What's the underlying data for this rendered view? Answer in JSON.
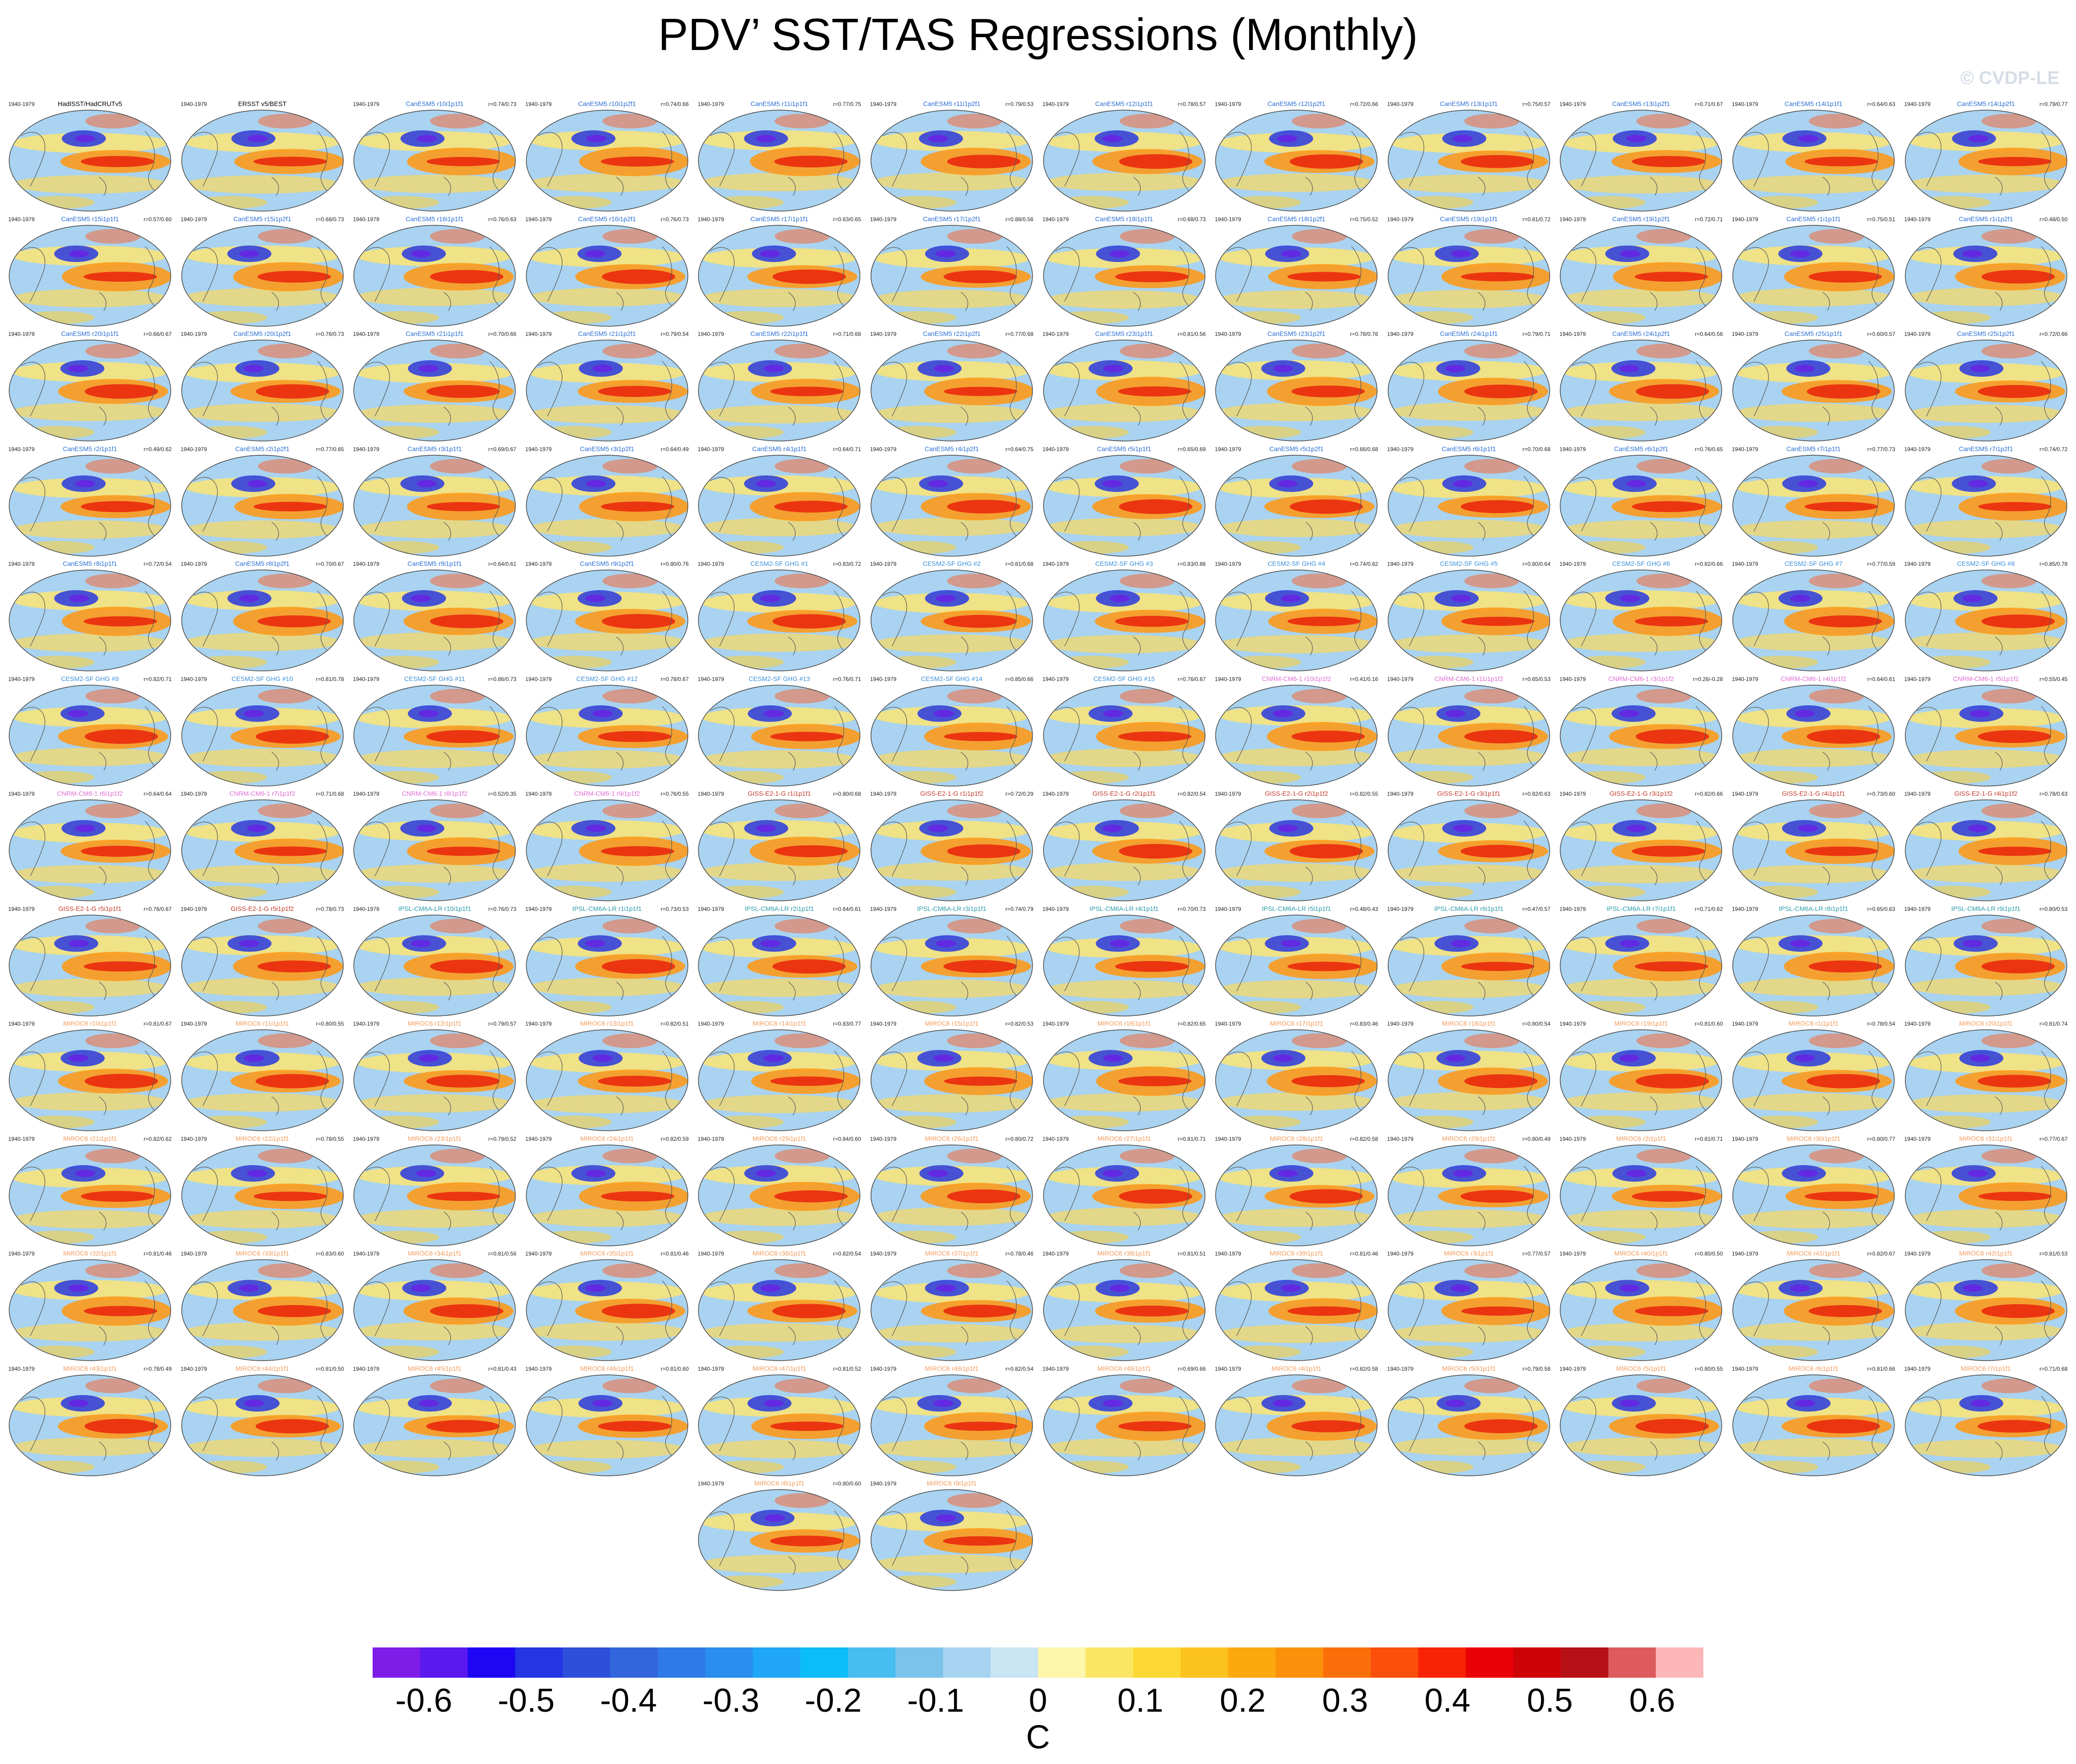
{
  "title": "PDV’ SST/TAS Regressions (Monthly)",
  "watermark": "© CVDP-LE",
  "chart_data": {
    "type": "heatmap",
    "title": "PDV’ SST/TAS Regressions (Monthly)",
    "period": "1940-1979",
    "panels": [
      {
        "name": "HadISST/HadCRUTv5",
        "group": "obs",
        "r": ""
      },
      {
        "name": "ERSST v5/BEST",
        "group": "obs",
        "r": ""
      },
      {
        "name": "CanESM5 r10i1p1f1",
        "group": "CanESM5",
        "r": "r=0.74/0.73"
      },
      {
        "name": "CanESM5 r10i1p2f1",
        "group": "CanESM5",
        "r": "r=0.74/0.66"
      },
      {
        "name": "CanESM5 r11i1p1f1",
        "group": "CanESM5",
        "r": "r=0.77/0.75"
      },
      {
        "name": "CanESM5 r11i1p2f1",
        "group": "CanESM5",
        "r": "r=0.79/0.53"
      },
      {
        "name": "CanESM5 r12i1p1f1",
        "group": "CanESM5",
        "r": "r=0.78/0.57"
      },
      {
        "name": "CanESM5 r12i1p2f1",
        "group": "CanESM5",
        "r": "r=0.72/0.66"
      },
      {
        "name": "CanESM5 r13i1p1f1",
        "group": "CanESM5",
        "r": "r=0.75/0.57"
      },
      {
        "name": "CanESM5 r13i1p2f1",
        "group": "CanESM5",
        "r": "r=0.71/0.67"
      },
      {
        "name": "CanESM5 r14i1p1f1",
        "group": "CanESM5",
        "r": "r=0.64/0.63"
      },
      {
        "name": "CanESM5 r14i1p2f1",
        "group": "CanESM5",
        "r": "r=0.79/0.77"
      },
      {
        "name": "CanESM5 r15i1p1f1",
        "group": "CanESM5",
        "r": "r=0.57/0.60"
      },
      {
        "name": "CanESM5 r15i1p2f1",
        "group": "CanESM5",
        "r": "r=0.68/0.73"
      },
      {
        "name": "CanESM5 r16i1p1f1",
        "group": "CanESM5",
        "r": "r=0.76/0.63"
      },
      {
        "name": "CanESM5 r16i1p2f1",
        "group": "CanESM5",
        "r": "r=0.76/0.73"
      },
      {
        "name": "CanESM5 r17i1p1f1",
        "group": "CanESM5",
        "r": "r=0.63/0.65"
      },
      {
        "name": "CanESM5 r17i1p2f1",
        "group": "CanESM5",
        "r": "r=0.88/0.56"
      },
      {
        "name": "CanESM5 r18i1p1f1",
        "group": "CanESM5",
        "r": "r=0.68/0.73"
      },
      {
        "name": "CanESM5 r18i1p2f1",
        "group": "CanESM5",
        "r": "r=0.75/0.52"
      },
      {
        "name": "CanESM5 r19i1p1f1",
        "group": "CanESM5",
        "r": "r=0.81/0.72"
      },
      {
        "name": "CanESM5 r19i1p2f1",
        "group": "CanESM5",
        "r": "r=0.72/0.71"
      },
      {
        "name": "CanESM5 r1i1p1f1",
        "group": "CanESM5",
        "r": "r=0.75/0.51"
      },
      {
        "name": "CanESM5 r1i1p2f1",
        "group": "CanESM5",
        "r": "r=0.48/0.50"
      },
      {
        "name": "CanESM5 r20i1p1f1",
        "group": "CanESM5",
        "r": "r=0.66/0.67"
      },
      {
        "name": "CanESM5 r20i1p2f1",
        "group": "CanESM5",
        "r": "r=0.76/0.73"
      },
      {
        "name": "CanESM5 r21i1p1f1",
        "group": "CanESM5",
        "r": "r=0.70/0.66"
      },
      {
        "name": "CanESM5 r21i1p2f1",
        "group": "CanESM5",
        "r": "r=0.79/0.54"
      },
      {
        "name": "CanESM5 r22i1p1f1",
        "group": "CanESM5",
        "r": "r=0.71/0.68"
      },
      {
        "name": "CanESM5 r22i1p2f1",
        "group": "CanESM5",
        "r": "r=0.77/0.68"
      },
      {
        "name": "CanESM5 r23i1p1f1",
        "group": "CanESM5",
        "r": "r=0.81/0.56"
      },
      {
        "name": "CanESM5 r23i1p2f1",
        "group": "CanESM5",
        "r": "r=0.78/0.76"
      },
      {
        "name": "CanESM5 r24i1p1f1",
        "group": "CanESM5",
        "r": "r=0.79/0.71"
      },
      {
        "name": "CanESM5 r24i1p2f1",
        "group": "CanESM5",
        "r": "r=0.64/0.56"
      },
      {
        "name": "CanESM5 r25i1p1f1",
        "group": "CanESM5",
        "r": "r=0.60/0.57"
      },
      {
        "name": "CanESM5 r25i1p2f1",
        "group": "CanESM5",
        "r": "r=0.72/0.66"
      },
      {
        "name": "CanESM5 r2i1p1f1",
        "group": "CanESM5",
        "r": "r=0.49/0.62"
      },
      {
        "name": "CanESM5 r2i1p2f1",
        "group": "CanESM5",
        "r": "r=0.77/0.65"
      },
      {
        "name": "CanESM5 r3i1p1f1",
        "group": "CanESM5",
        "r": "r=0.69/0.67"
      },
      {
        "name": "CanESM5 r3i1p2f1",
        "group": "CanESM5",
        "r": "r=0.64/0.49"
      },
      {
        "name": "CanESM5 r4i1p1f1",
        "group": "CanESM5",
        "r": "r=0.64/0.71"
      },
      {
        "name": "CanESM5 r4i1p2f1",
        "group": "CanESM5",
        "r": "r=0.64/0.75"
      },
      {
        "name": "CanESM5 r5i1p1f1",
        "group": "CanESM5",
        "r": "r=0.65/0.69"
      },
      {
        "name": "CanESM5 r5i1p2f1",
        "group": "CanESM5",
        "r": "r=0.66/0.68"
      },
      {
        "name": "CanESM5 r6i1p1f1",
        "group": "CanESM5",
        "r": "r=0.70/0.68"
      },
      {
        "name": "CanESM5 r6i1p2f1",
        "group": "CanESM5",
        "r": "r=0.76/0.65"
      },
      {
        "name": "CanESM5 r7i1p1f1",
        "group": "CanESM5",
        "r": "r=0.77/0.73"
      },
      {
        "name": "CanESM5 r7i1p2f1",
        "group": "CanESM5",
        "r": "r=0.74/0.72"
      },
      {
        "name": "CanESM5 r8i1p1f1",
        "group": "CanESM5",
        "r": "r=0.72/0.54"
      },
      {
        "name": "CanESM5 r8i1p2f1",
        "group": "CanESM5",
        "r": "r=0.70/0.67"
      },
      {
        "name": "CanESM5 r9i1p1f1",
        "group": "CanESM5",
        "r": "r=0.64/0.61"
      },
      {
        "name": "CanESM5 r9i1p2f1",
        "group": "CanESM5",
        "r": "r=0.80/0.76"
      },
      {
        "name": "CESM2-SF GHG #1",
        "group": "CESM2",
        "r": "r=0.83/0.72"
      },
      {
        "name": "CESM2-SF GHG #2",
        "group": "CESM2",
        "r": "r=0.81/0.68"
      },
      {
        "name": "CESM2-SF GHG #3",
        "group": "CESM2",
        "r": "r=0.83/0.86"
      },
      {
        "name": "CESM2-SF GHG #4",
        "group": "CESM2",
        "r": "r=0.74/0.82"
      },
      {
        "name": "CESM2-SF GHG #5",
        "group": "CESM2",
        "r": "r=0.80/0.64"
      },
      {
        "name": "CESM2-SF GHG #6",
        "group": "CESM2",
        "r": "r=0.82/0.66"
      },
      {
        "name": "CESM2-SF GHG #7",
        "group": "CESM2",
        "r": "r=0.77/0.59"
      },
      {
        "name": "CESM2-SF GHG #8",
        "group": "CESM2",
        "r": "r=0.85/0.78"
      },
      {
        "name": "CESM2-SF GHG #9",
        "group": "CESM2",
        "r": "r=0.82/0.71"
      },
      {
        "name": "CESM2-SF GHG #10",
        "group": "CESM2",
        "r": "r=0.81/0.78"
      },
      {
        "name": "CESM2-SF GHG #11",
        "group": "CESM2",
        "r": "r=0.86/0.73"
      },
      {
        "name": "CESM2-SF GHG #12",
        "group": "CESM2",
        "r": "r=0.78/0.67"
      },
      {
        "name": "CESM2-SF GHG #13",
        "group": "CESM2",
        "r": "r=0.76/0.71"
      },
      {
        "name": "CESM2-SF GHG #14",
        "group": "CESM2",
        "r": "r=0.85/0.66"
      },
      {
        "name": "CESM2-SF GHG #15",
        "group": "CESM2",
        "r": "r=0.76/0.67"
      },
      {
        "name": "CNRM-CM6-1 r10i1p1f2",
        "group": "CNRM",
        "r": "r=0.41/0.16"
      },
      {
        "name": "CNRM-CM6-1 r11i1p1f2",
        "group": "CNRM",
        "r": "r=0.65/0.53"
      },
      {
        "name": "CNRM-CM6-1 r3i1p1f2",
        "group": "CNRM",
        "r": "r=0.26/-0.28"
      },
      {
        "name": "CNRM-CM6-1 r4i1p1f2",
        "group": "CNRM",
        "r": "r=0.64/0.61"
      },
      {
        "name": "CNRM-CM6-1 r5i1p1f2",
        "group": "CNRM",
        "r": "r=0.55/0.45"
      },
      {
        "name": "CNRM-CM6-1 r6i1p1f2",
        "group": "CNRM",
        "r": "r=0.64/0.64"
      },
      {
        "name": "CNRM-CM6-1 r7i1p1f2",
        "group": "CNRM",
        "r": "r=0.71/0.68"
      },
      {
        "name": "CNRM-CM6-1 r8i1p1f2",
        "group": "CNRM",
        "r": "r=0.52/0.35"
      },
      {
        "name": "CNRM-CM6-1 r9i1p1f2",
        "group": "CNRM",
        "r": "r=0.76/0.55"
      },
      {
        "name": "GISS-E2-1-G r1i1p1f1",
        "group": "GISS",
        "r": "r=0.80/0.68"
      },
      {
        "name": "GISS-E2-1-G r1i1p1f2",
        "group": "GISS",
        "r": "r=0.72/0.29"
      },
      {
        "name": "GISS-E2-1-G r2i1p1f1",
        "group": "GISS",
        "r": "r=0.82/0.54"
      },
      {
        "name": "GISS-E2-1-G r2i1p1f2",
        "group": "GISS",
        "r": "r=0.82/0.55"
      },
      {
        "name": "GISS-E2-1-G r3i1p1f1",
        "group": "GISS",
        "r": "r=0.82/0.63"
      },
      {
        "name": "GISS-E2-1-G r3i1p1f2",
        "group": "GISS",
        "r": "r=0.82/0.66"
      },
      {
        "name": "GISS-E2-1-G r4i1p1f1",
        "group": "GISS",
        "r": "r=0.73/0.60"
      },
      {
        "name": "GISS-E2-1-G r4i1p1f2",
        "group": "GISS",
        "r": "r=0.78/0.63"
      },
      {
        "name": "GISS-E2-1-G r5i1p1f1",
        "group": "GISS",
        "r": "r=0.76/0.67"
      },
      {
        "name": "GISS-E2-1-G r5i1p1f2",
        "group": "GISS",
        "r": "r=0.78/0.73"
      },
      {
        "name": "IPSL-CM6A-LR r10i1p1f1",
        "group": "IPSL",
        "r": "r=0.76/0.73"
      },
      {
        "name": "IPSL-CM6A-LR r1i1p1f1",
        "group": "IPSL",
        "r": "r=0.73/0.53"
      },
      {
        "name": "IPSL-CM6A-LR r2i1p1f1",
        "group": "IPSL",
        "r": "r=0.64/0.61"
      },
      {
        "name": "IPSL-CM6A-LR r3i1p1f1",
        "group": "IPSL",
        "r": "r=0.74/0.79"
      },
      {
        "name": "IPSL-CM6A-LR r4i1p1f1",
        "group": "IPSL",
        "r": "r=0.70/0.73"
      },
      {
        "name": "IPSL-CM6A-LR r5i1p1f1",
        "group": "IPSL",
        "r": "r=0.48/0.43"
      },
      {
        "name": "IPSL-CM6A-LR r6i1p1f1",
        "group": "IPSL",
        "r": "r=0.47/0.57"
      },
      {
        "name": "IPSL-CM6A-LR r7i1p1f1",
        "group": "IPSL",
        "r": "r=0.71/0.62"
      },
      {
        "name": "IPSL-CM6A-LR r8i1p1f1",
        "group": "IPSL",
        "r": "r=0.65/0.63"
      },
      {
        "name": "IPSL-CM6A-LR r9i1p1f1",
        "group": "IPSL",
        "r": "r=0.80/0.53"
      },
      {
        "name": "MIROC6 r10i1p1f1",
        "group": "MIROC6",
        "r": "r=0.81/0.67"
      },
      {
        "name": "MIROC6 r11i1p1f1",
        "group": "MIROC6",
        "r": "r=0.80/0.55"
      },
      {
        "name": "MIROC6 r12i1p1f1",
        "group": "MIROC6",
        "r": "r=0.79/0.57"
      },
      {
        "name": "MIROC6 r13i1p1f1",
        "group": "MIROC6",
        "r": "r=0.82/0.51"
      },
      {
        "name": "MIROC6 r14i1p1f1",
        "group": "MIROC6",
        "r": "r=0.83/0.77"
      },
      {
        "name": "MIROC6 r15i1p1f1",
        "group": "MIROC6",
        "r": "r=0.82/0.53"
      },
      {
        "name": "MIROC6 r16i1p1f1",
        "group": "MIROC6",
        "r": "r=0.82/0.65"
      },
      {
        "name": "MIROC6 r17i1p1f1",
        "group": "MIROC6",
        "r": "r=0.83/0.46"
      },
      {
        "name": "MIROC6 r18i1p1f1",
        "group": "MIROC6",
        "r": "r=0.80/0.54"
      },
      {
        "name": "MIROC6 r19i1p1f1",
        "group": "MIROC6",
        "r": "r=0.81/0.60"
      },
      {
        "name": "MIROC6 r1i1p1f1",
        "group": "MIROC6",
        "r": "r=0.78/0.54"
      },
      {
        "name": "MIROC6 r20i1p1f1",
        "group": "MIROC6",
        "r": "r=0.81/0.74"
      },
      {
        "name": "MIROC6 r21i1p1f1",
        "group": "MIROC6",
        "r": "r=0.82/0.62"
      },
      {
        "name": "MIROC6 r22i1p1f1",
        "group": "MIROC6",
        "r": "r=0.78/0.55"
      },
      {
        "name": "MIROC6 r23i1p1f1",
        "group": "MIROC6",
        "r": "r=0.79/0.52"
      },
      {
        "name": "MIROC6 r24i1p1f1",
        "group": "MIROC6",
        "r": "r=0.82/0.59"
      },
      {
        "name": "MIROC6 r25i1p1f1",
        "group": "MIROC6",
        "r": "r=0.84/0.60"
      },
      {
        "name": "MIROC6 r26i1p1f1",
        "group": "MIROC6",
        "r": "r=0.80/0.72"
      },
      {
        "name": "MIROC6 r27i1p1f1",
        "group": "MIROC6",
        "r": "r=0.81/0.71"
      },
      {
        "name": "MIROC6 r28i1p1f1",
        "group": "MIROC6",
        "r": "r=0.82/0.58"
      },
      {
        "name": "MIROC6 r29i1p1f1",
        "group": "MIROC6",
        "r": "r=0.80/0.49"
      },
      {
        "name": "MIROC6 r2i1p1f1",
        "group": "MIROC6",
        "r": "r=0.81/0.71"
      },
      {
        "name": "MIROC6 r30i1p1f1",
        "group": "MIROC6",
        "r": "r=0.80/0.77"
      },
      {
        "name": "MIROC6 r31i1p1f1",
        "group": "MIROC6",
        "r": "r=0.77/0.67"
      },
      {
        "name": "MIROC6 r32i1p1f1",
        "group": "MIROC6",
        "r": "r=0.81/0.46"
      },
      {
        "name": "MIROC6 r33i1p1f1",
        "group": "MIROC6",
        "r": "r=0.83/0.60"
      },
      {
        "name": "MIROC6 r34i1p1f1",
        "group": "MIROC6",
        "r": "r=0.81/0.56"
      },
      {
        "name": "MIROC6 r35i1p1f1",
        "group": "MIROC6",
        "r": "r=0.81/0.46"
      },
      {
        "name": "MIROC6 r36i1p1f1",
        "group": "MIROC6",
        "r": "r=0.82/0.54"
      },
      {
        "name": "MIROC6 r37i1p1f1",
        "group": "MIROC6",
        "r": "r=0.78/0.46"
      },
      {
        "name": "MIROC6 r38i1p1f1",
        "group": "MIROC6",
        "r": "r=0.81/0.51"
      },
      {
        "name": "MIROC6 r39i1p1f1",
        "group": "MIROC6",
        "r": "r=0.81/0.46"
      },
      {
        "name": "MIROC6 r3i1p1f1",
        "group": "MIROC6",
        "r": "r=0.77/0.57"
      },
      {
        "name": "MIROC6 r40i1p1f1",
        "group": "MIROC6",
        "r": "r=0.80/0.50"
      },
      {
        "name": "MIROC6 r41i1p1f1",
        "group": "MIROC6",
        "r": "r=0.82/0.67"
      },
      {
        "name": "MIROC6 r42i1p1f1",
        "group": "MIROC6",
        "r": "r=0.81/0.53"
      },
      {
        "name": "MIROC6 r43i1p1f1",
        "group": "MIROC6",
        "r": "r=0.78/0.49"
      },
      {
        "name": "MIROC6 r44i1p1f1",
        "group": "MIROC6",
        "r": "r=0.81/0.50"
      },
      {
        "name": "MIROC6 r45i1p1f1",
        "group": "MIROC6",
        "r": "r=0.81/0.43"
      },
      {
        "name": "MIROC6 r46i1p1f1",
        "group": "MIROC6",
        "r": "r=0.81/0.60"
      },
      {
        "name": "MIROC6 r47i1p1f1",
        "group": "MIROC6",
        "r": "r=0.81/0.52"
      },
      {
        "name": "MIROC6 r48i1p1f1",
        "group": "MIROC6",
        "r": "r=0.82/0.54"
      },
      {
        "name": "MIROC6 r49i1p1f1",
        "group": "MIROC6",
        "r": "r=0.69/0.66"
      },
      {
        "name": "MIROC6 r4i1p1f1",
        "group": "MIROC6",
        "r": "r=0.82/0.58"
      },
      {
        "name": "MIROC6 r50i1p1f1",
        "group": "MIROC6",
        "r": "r=0.79/0.58"
      },
      {
        "name": "MIROC6 r5i1p1f1",
        "group": "MIROC6",
        "r": "r=0.80/0.55"
      },
      {
        "name": "MIROC6 r6i1p1f1",
        "group": "MIROC6",
        "r": "r=0.81/0.66"
      },
      {
        "name": "MIROC6 r7i1p1f1",
        "group": "MIROC6",
        "r": "r=0.71/0.68"
      },
      {
        "name": "MIROC6 r8i1p1f1",
        "group": "MIROC6",
        "r": "r=0.80/0.60"
      },
      {
        "name": "MIROC6 r9i1p1f1",
        "group": "MIROC6",
        "r": ""
      }
    ],
    "colorbar": {
      "units": "C",
      "ticks": [
        "-0.6",
        "-0.5",
        "-0.4",
        "-0.3",
        "-0.2",
        "-0.1",
        "0",
        "0.1",
        "0.2",
        "0.3",
        "0.4",
        "0.5",
        "0.6"
      ],
      "levels_min": -0.65,
      "levels_max": 0.65,
      "colors": [
        "#7e1de8",
        "#5a1aef",
        "#1e06f5",
        "#2436e3",
        "#2e4fd9",
        "#3366dd",
        "#2f7ae6",
        "#2a8df0",
        "#1fa6f6",
        "#0bbdf8",
        "#48bdf0",
        "#7cc3ec",
        "#a6d4f0",
        "#c9e4f3",
        "#fdf6ab",
        "#fbe664",
        "#fcd834",
        "#fcc21d",
        "#fba90f",
        "#fb900a",
        "#fb6f0a",
        "#fb4f0c",
        "#f82307",
        "#ea0006",
        "#cd0207",
        "#b61116",
        "#dd5b5e",
        "#fdb7b8"
      ]
    },
    "group_colors": {
      "obs": "#000000",
      "CanESM5": "#2a6ed4",
      "CESM2": "#3b8fd8",
      "CNRM": "#e06bd2",
      "GISS": "#c23a2a",
      "IPSL": "#2a9aa8",
      "MIROC6": "#f29a5a"
    }
  }
}
